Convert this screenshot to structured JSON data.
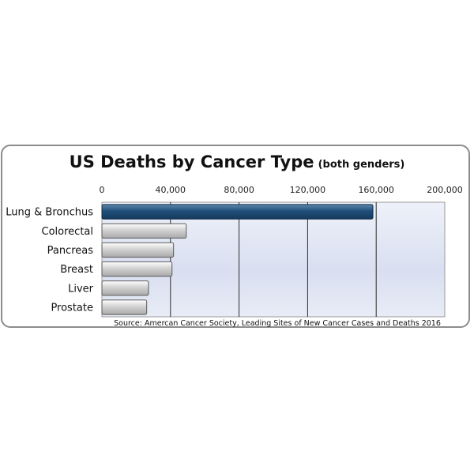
{
  "chart_data": {
    "type": "bar",
    "orientation": "horizontal",
    "title": "US Deaths by Cancer Type",
    "subtitle": "(both genders)",
    "categories": [
      "Lung & Bronchus",
      "Colorectal",
      "Pancreas",
      "Breast",
      "Liver",
      "Prostate"
    ],
    "values": [
      158080,
      49190,
      41780,
      40890,
      27170,
      26120
    ],
    "xlim": [
      0,
      200000
    ],
    "ticks": [
      0,
      40000,
      80000,
      120000,
      160000,
      200000
    ],
    "tick_labels": [
      "0",
      "40,000",
      "80,000",
      "120,000",
      "160,000",
      "200,000"
    ],
    "axis_position": "top",
    "grid": true,
    "source": "Source: Amercan Cancer Society, Leading Sites of New Cancer Cases and Deaths 2016",
    "colors": {
      "highlight_bar": "#1f4e79",
      "bar": "#d4d4d4",
      "plot_background": "#dde3f2"
    }
  }
}
